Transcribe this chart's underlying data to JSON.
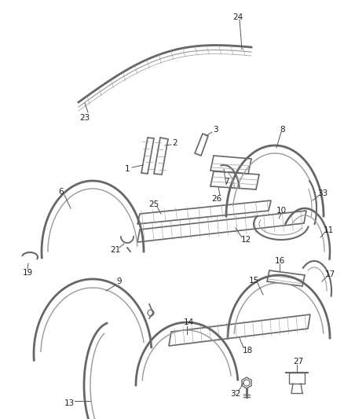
{
  "background": "#ffffff",
  "line_color": "#666666",
  "figsize": [
    4.38,
    5.33
  ],
  "dpi": 100
}
